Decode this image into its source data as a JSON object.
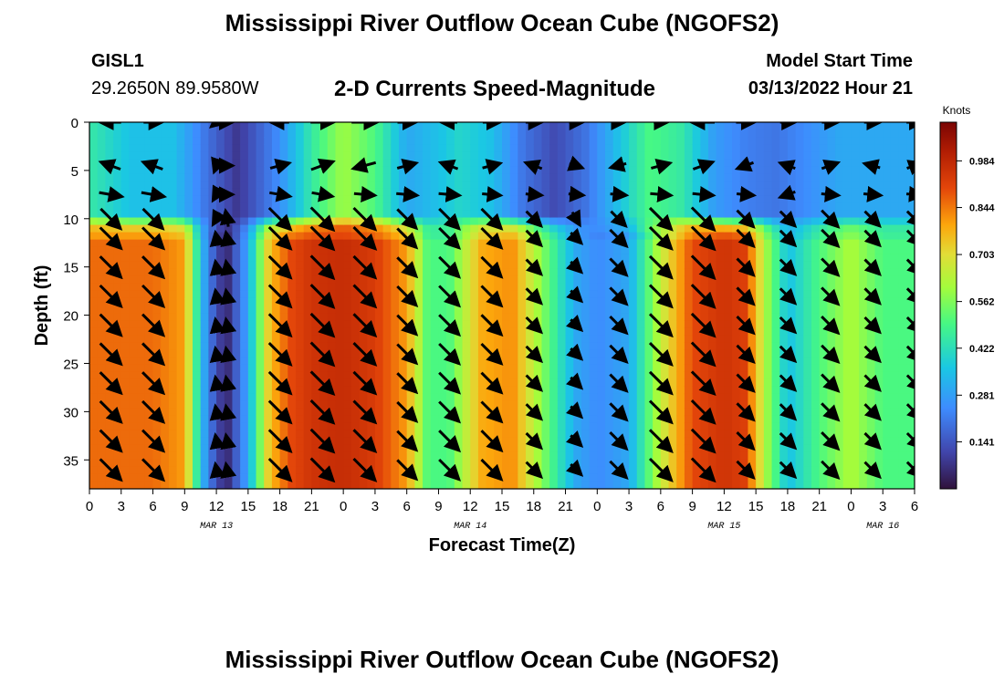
{
  "header": {
    "title": "Mississippi River Outflow Ocean Cube (NGOFS2)",
    "station_name": "GISL1",
    "station_coords": "29.2650N  89.9580W",
    "plot_title": "2-D Currents Speed-Magnitude",
    "model_start_label": "Model Start Time",
    "model_start_value": "03/13/2022 Hour 21"
  },
  "footer": {
    "title": "Mississippi River Outflow Ocean Cube (NGOFS2)"
  },
  "chart_data": {
    "type": "heatmap",
    "xlabel": "Forecast Time(Z)",
    "ylabel": "Depth (ft)",
    "x_unit": "hours since 03/13/2022 00Z",
    "xlim": [
      0,
      78
    ],
    "ylim": [
      0,
      38
    ],
    "x_ticks": [
      0,
      3,
      6,
      9,
      12,
      15,
      18,
      21,
      24,
      27,
      30,
      33,
      36,
      39,
      42,
      45,
      48,
      51,
      54,
      57,
      60,
      63,
      66,
      69,
      72,
      75,
      78
    ],
    "x_tick_labels": [
      "0",
      "3",
      "6",
      "9",
      "12",
      "15",
      "18",
      "21",
      "0",
      "3",
      "6",
      "9",
      "12",
      "15",
      "18",
      "21",
      "0",
      "3",
      "6",
      "9",
      "12",
      "15",
      "18",
      "21",
      "0",
      "3",
      "6"
    ],
    "date_labels": [
      {
        "x": 12,
        "text": "MAR 13"
      },
      {
        "x": 36,
        "text": "MAR 14"
      },
      {
        "x": 60,
        "text": "MAR 15"
      },
      {
        "x": 75,
        "text": "MAR 16"
      }
    ],
    "y_ticks": [
      0,
      5,
      10,
      15,
      20,
      25,
      30,
      35
    ],
    "y_tick_labels": [
      "0",
      "5",
      "10",
      "15",
      "20",
      "25",
      "30",
      "35"
    ],
    "colorbar": {
      "label": "Knots",
      "min": 0.0,
      "max": 1.1,
      "ticks": [
        0.141,
        0.281,
        0.422,
        0.562,
        0.703,
        0.844,
        0.984
      ],
      "tick_labels": [
        "0.141",
        "0.281",
        "0.422",
        "0.562",
        "0.703",
        "0.844",
        "0.984"
      ]
    },
    "layers": [
      {
        "name": "surface",
        "depth_range": [
          0,
          9.5
        ],
        "times": [
          0,
          4,
          8,
          11,
          14,
          18,
          21,
          24,
          27,
          30,
          33,
          35,
          38,
          41,
          44,
          47,
          50,
          53,
          56,
          59,
          62,
          65,
          68,
          71,
          74,
          78
        ],
        "speeds": [
          0.45,
          0.35,
          0.35,
          0.2,
          0.08,
          0.25,
          0.45,
          0.6,
          0.5,
          0.3,
          0.35,
          0.4,
          0.35,
          0.2,
          0.12,
          0.2,
          0.35,
          0.5,
          0.45,
          0.28,
          0.22,
          0.2,
          0.25,
          0.3,
          0.3,
          0.3
        ]
      },
      {
        "name": "deep",
        "depth_range": [
          10,
          38
        ],
        "times": [
          0,
          3,
          6,
          9,
          10.5,
          12,
          13,
          15,
          17,
          19,
          21,
          24,
          27,
          30,
          32,
          34,
          37,
          40,
          43,
          46,
          48,
          51,
          54,
          57,
          60,
          62,
          64,
          66,
          69,
          72,
          75,
          78
        ],
        "speeds": [
          0.86,
          0.86,
          0.86,
          0.8,
          0.35,
          0.12,
          0.05,
          0.3,
          0.75,
          0.9,
          0.95,
          0.97,
          0.93,
          0.8,
          0.5,
          0.5,
          0.78,
          0.82,
          0.55,
          0.3,
          0.24,
          0.3,
          0.65,
          0.9,
          0.95,
          0.92,
          0.6,
          0.35,
          0.5,
          0.62,
          0.5,
          0.5
        ]
      }
    ],
    "vectors": {
      "x": [
        2,
        6,
        12,
        13,
        18,
        22,
        26,
        30,
        34,
        38,
        42,
        46,
        50,
        54,
        58,
        62,
        66,
        70,
        74,
        78
      ],
      "rows": [
        {
          "depth": 0,
          "angles": [
            180,
            0,
            220,
            0,
            180,
            0,
            0,
            0,
            180,
            0,
            0,
            0,
            0,
            0,
            180,
            0,
            0,
            0,
            0,
            0
          ],
          "speeds": [
            0.5,
            0.4,
            0.2,
            0.1,
            0.4,
            0.6,
            0.7,
            0.4,
            0.3,
            0.35,
            0.3,
            0.2,
            0.15,
            0.2,
            0.6,
            0.4,
            0.25,
            0.3,
            0.3,
            0.3
          ]
        },
        {
          "depth": 4.5,
          "angles": [
            160,
            160,
            250,
            0,
            15,
            20,
            195,
            15,
            160,
            15,
            160,
            340,
            195,
            15,
            20,
            200,
            160,
            20,
            165,
            20
          ],
          "speeds": [
            0.5,
            0.5,
            0.2,
            0.1,
            0.45,
            0.6,
            0.6,
            0.45,
            0.4,
            0.4,
            0.35,
            0.2,
            0.3,
            0.45,
            0.5,
            0.35,
            0.3,
            0.35,
            0.3,
            0.3
          ]
        },
        {
          "depth": 7.5,
          "angles": [
            350,
            350,
            240,
            0,
            350,
            350,
            355,
            355,
            355,
            355,
            355,
            355,
            355,
            355,
            355,
            355,
            200,
            355,
            355,
            355
          ],
          "speeds": [
            0.6,
            0.6,
            0.2,
            0.1,
            0.5,
            0.5,
            0.5,
            0.5,
            0.5,
            0.4,
            0.3,
            0.25,
            0.3,
            0.5,
            0.5,
            0.35,
            0.3,
            0.35,
            0.35,
            0.3
          ]
        },
        {
          "depth": 10,
          "angles": [
            315,
            315,
            240,
            100,
            315,
            315,
            315,
            315,
            315,
            315,
            315,
            300,
            315,
            315,
            315,
            315,
            315,
            315,
            315,
            315
          ],
          "speeds": [
            0.8,
            0.8,
            0.2,
            0.3,
            0.9,
            0.95,
            0.9,
            0.75,
            0.8,
            0.8,
            0.5,
            0.25,
            0.5,
            0.9,
            0.95,
            0.6,
            0.5,
            0.6,
            0.5,
            0.5
          ]
        }
      ],
      "deep_rows": [
        12,
        15,
        18,
        21,
        24,
        27,
        30,
        33,
        36
      ],
      "deep_angle": 315,
      "deep_speeds": [
        0.86,
        0.86,
        0.1,
        0.1,
        0.9,
        0.95,
        0.9,
        0.75,
        0.8,
        0.8,
        0.5,
        0.25,
        0.6,
        0.9,
        0.95,
        0.6,
        0.5,
        0.6,
        0.5,
        0.5
      ]
    }
  }
}
